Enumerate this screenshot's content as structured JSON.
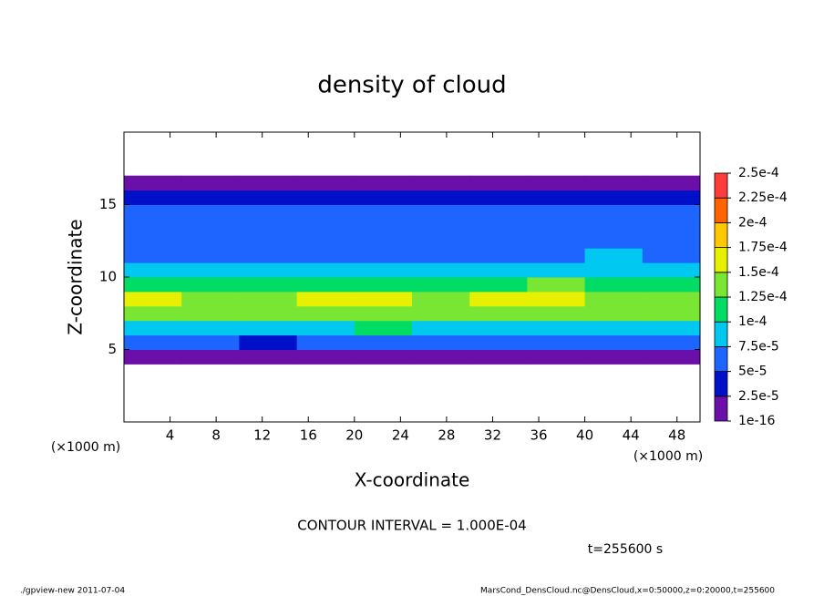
{
  "chart_data": {
    "type": "heatmap",
    "title": "density of cloud",
    "xlabel": "X-coordinate",
    "ylabel": "Z-coordinate",
    "x_unit": "(×1000 m)",
    "y_unit": "(×1000 m)",
    "xlim": [
      0,
      50
    ],
    "ylim": [
      0,
      20
    ],
    "xticks": [
      4,
      8,
      12,
      16,
      20,
      24,
      28,
      32,
      36,
      40,
      44,
      48
    ],
    "yticks": [
      5,
      10,
      15
    ],
    "x": [
      2.5,
      7.5,
      12.5,
      17.5,
      22.5,
      27.5,
      32.5,
      37.5,
      42.5,
      47.5
    ],
    "y": [
      4.5,
      5.5,
      6.5,
      7.5,
      8.5,
      9.5,
      10.5,
      11.5,
      12.5,
      13.5,
      14.5,
      15.5,
      16.5
    ],
    "z": [
      [
        1e-05,
        1e-05,
        1e-05,
        1e-05,
        1e-05,
        1e-05,
        1e-05,
        1e-05,
        1e-05,
        1e-05
      ],
      [
        6e-05,
        5e-05,
        4e-05,
        5e-05,
        6e-05,
        6e-05,
        5e-05,
        5e-05,
        6e-05,
        6e-05
      ],
      [
        9e-05,
        8e-05,
        8e-05,
        9e-05,
        0.000105,
        9e-05,
        9e-05,
        8e-05,
        9e-05,
        9e-05
      ],
      [
        0.00014,
        0.000135,
        0.00013,
        0.00014,
        0.000145,
        0.00014,
        0.000135,
        0.00014,
        0.00013,
        0.000135
      ],
      [
        0.00015,
        0.000145,
        0.00014,
        0.00015,
        0.000155,
        0.000145,
        0.00016,
        0.00015,
        0.000145,
        0.00014
      ],
      [
        0.00011,
        0.000105,
        0.00011,
        0.000115,
        0.00011,
        0.000105,
        0.00012,
        0.000125,
        0.000115,
        0.00011
      ],
      [
        8e-05,
        7.5e-05,
        8e-05,
        7.8e-05,
        8.5e-05,
        8e-05,
        8e-05,
        8.5e-05,
        9e-05,
        8e-05
      ],
      [
        7e-05,
        6.5e-05,
        7e-05,
        6.5e-05,
        7e-05,
        6.5e-05,
        6e-05,
        7e-05,
        7.5e-05,
        7e-05
      ],
      [
        6.5e-05,
        6e-05,
        6e-05,
        6e-05,
        6e-05,
        6e-05,
        5.5e-05,
        6e-05,
        6.5e-05,
        6.5e-05
      ],
      [
        6e-05,
        5.5e-05,
        5.5e-05,
        5e-05,
        5.5e-05,
        6e-05,
        5.5e-05,
        6e-05,
        6e-05,
        6e-05
      ],
      [
        5.5e-05,
        5.5e-05,
        5e-05,
        5e-05,
        5e-05,
        5.5e-05,
        5.5e-05,
        5.5e-05,
        5.5e-05,
        5.5e-05
      ],
      [
        3e-05,
        3e-05,
        2.8e-05,
        2.8e-05,
        3e-05,
        3e-05,
        3e-05,
        3e-05,
        3e-05,
        3e-05
      ],
      [
        1e-05,
        1e-05,
        1e-05,
        1e-05,
        1e-05,
        1e-05,
        1e-05,
        1e-05,
        1e-05,
        1e-05
      ]
    ],
    "levels": [
      1e-16,
      {
        "value": 2.5e-05,
        "label": "2.5e-5"
      },
      {
        "value": 5e-05,
        "label": "5e-5"
      },
      {
        "value": 7.5e-05,
        "label": "7.5e-5"
      },
      {
        "value": 0.0001,
        "label": "1e-4"
      },
      {
        "value": 0.000125,
        "label": "1.25e-4"
      },
      {
        "value": 0.00015,
        "label": "1.5e-4"
      },
      {
        "value": 0.000175,
        "label": "1.75e-4"
      },
      {
        "value": 0.0002,
        "label": "2e-4"
      },
      {
        "value": 0.000225,
        "label": "2.25e-4"
      },
      {
        "value": 0.00025,
        "label": "2.5e-4"
      }
    ],
    "colors": [
      "#6a0fa8",
      "#0010c8",
      "#1e64ff",
      "#00c8f0",
      "#00dc64",
      "#78e632",
      "#e6f000",
      "#ffc800",
      "#ff6400",
      "#ff3c3c"
    ],
    "contour_note": "CONTOUR INTERVAL = 1.000E-04",
    "time_label": "t=255600 s",
    "footer_left": "./gpview-new  2011-07-04",
    "footer_right": "MarsCond_DensCloud.nc@DensCloud,x=0:50000,z=0:20000,t=255600"
  }
}
